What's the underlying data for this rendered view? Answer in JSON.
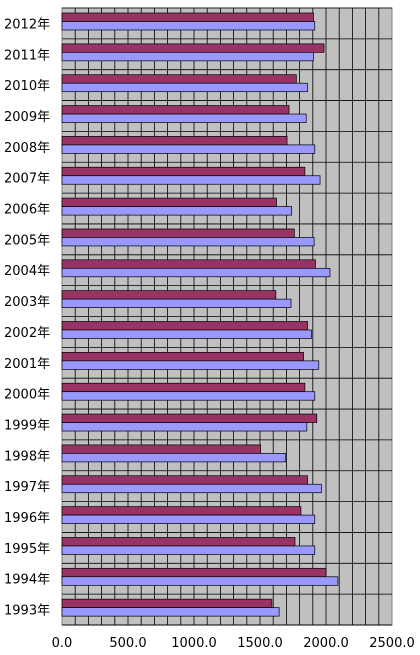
{
  "chart_data": {
    "type": "bar",
    "orientation": "horizontal",
    "categories": [
      "2012年",
      "2011年",
      "2010年",
      "2009年",
      "2008年",
      "2007年",
      "2006年",
      "2005年",
      "2004年",
      "2003年",
      "2002年",
      "2001年",
      "2000年",
      "1999年",
      "1998年",
      "1997年",
      "1996年",
      "1995年",
      "1994年",
      "1993年"
    ],
    "series": [
      {
        "values": [
          1905,
          1985,
          1775,
          1720,
          1705,
          1840,
          1625,
          1760,
          1920,
          1620,
          1860,
          1830,
          1840,
          1930,
          1505,
          1860,
          1810,
          1765,
          2000,
          1590
        ],
        "color": "#993366"
      },
      {
        "values": [
          1915,
          1905,
          1860,
          1850,
          1915,
          1955,
          1740,
          1910,
          2030,
          1735,
          1890,
          1945,
          1915,
          1855,
          1695,
          1965,
          1915,
          1915,
          2090,
          1645
        ],
        "color": "#9999ff"
      }
    ],
    "xlim": [
      0,
      2500
    ],
    "xticks": [
      "0.0",
      "500.0",
      "1000.0",
      "1500.0",
      "2000.0",
      "2500.0"
    ],
    "grid": true,
    "plot_background": "#c0c0c0"
  }
}
